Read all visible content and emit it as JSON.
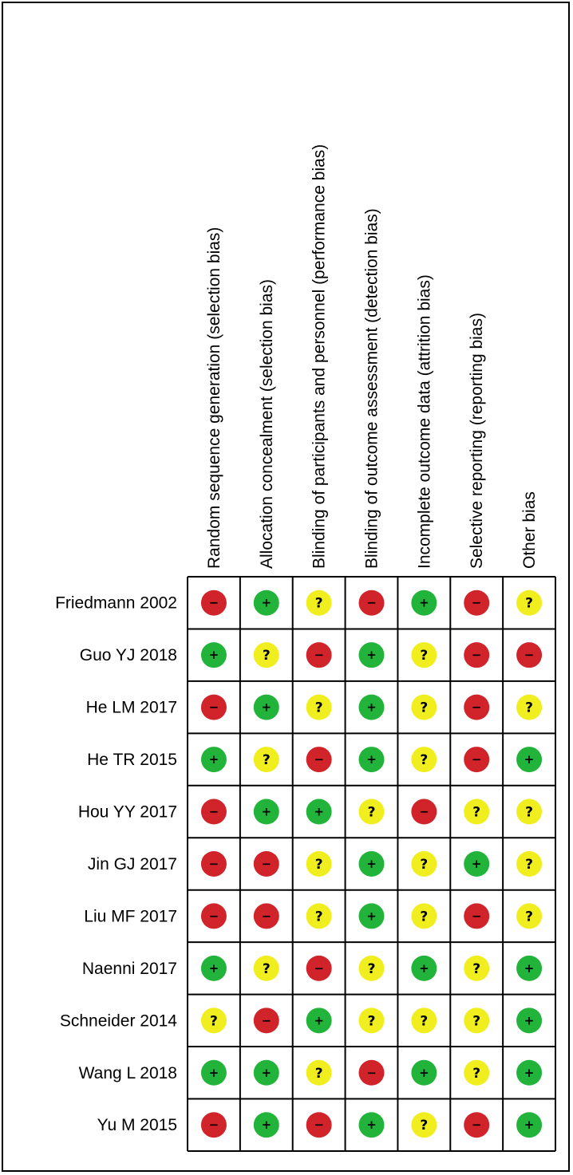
{
  "chart_data": {
    "type": "table",
    "columns": [
      "Random sequence generation (selection bias)",
      "Allocation concealment (selection bias)",
      "Blinding of participants and personnel (performance bias)",
      "Blinding of outcome assessment (detection bias)",
      "Incomplete outcome data (attrition bias)",
      "Selective reporting (reporting bias)",
      "Other bias"
    ],
    "rows": [
      "Friedmann 2002",
      "Guo YJ 2018",
      "He LM 2017",
      "He TR 2015",
      "Hou YY 2017",
      "Jin GJ 2017",
      "Liu MF 2017",
      "Naenni 2017",
      "Schneider 2014",
      "Wang L 2018",
      "Yu M 2015"
    ],
    "values": [
      [
        "high",
        "low",
        "unclear",
        "high",
        "low",
        "high",
        "unclear"
      ],
      [
        "low",
        "unclear",
        "high",
        "low",
        "unclear",
        "high",
        "high"
      ],
      [
        "high",
        "low",
        "unclear",
        "low",
        "unclear",
        "high",
        "unclear"
      ],
      [
        "low",
        "unclear",
        "high",
        "low",
        "unclear",
        "high",
        "low"
      ],
      [
        "high",
        "low",
        "low",
        "unclear",
        "high",
        "unclear",
        "unclear"
      ],
      [
        "high",
        "high",
        "unclear",
        "low",
        "unclear",
        "low",
        "unclear"
      ],
      [
        "high",
        "high",
        "unclear",
        "low",
        "unclear",
        "high",
        "unclear"
      ],
      [
        "low",
        "unclear",
        "high",
        "unclear",
        "low",
        "unclear",
        "low"
      ],
      [
        "unclear",
        "high",
        "low",
        "unclear",
        "unclear",
        "unclear",
        "low"
      ],
      [
        "low",
        "low",
        "unclear",
        "high",
        "low",
        "unclear",
        "low"
      ],
      [
        "high",
        "low",
        "high",
        "low",
        "unclear",
        "high",
        "low"
      ]
    ],
    "legend": {
      "low": {
        "symbol": "+",
        "color": "#22b43a"
      },
      "unclear": {
        "symbol": "?",
        "color": "#f0ee1e"
      },
      "high": {
        "symbol": "−",
        "color": "#d0232a"
      }
    }
  }
}
